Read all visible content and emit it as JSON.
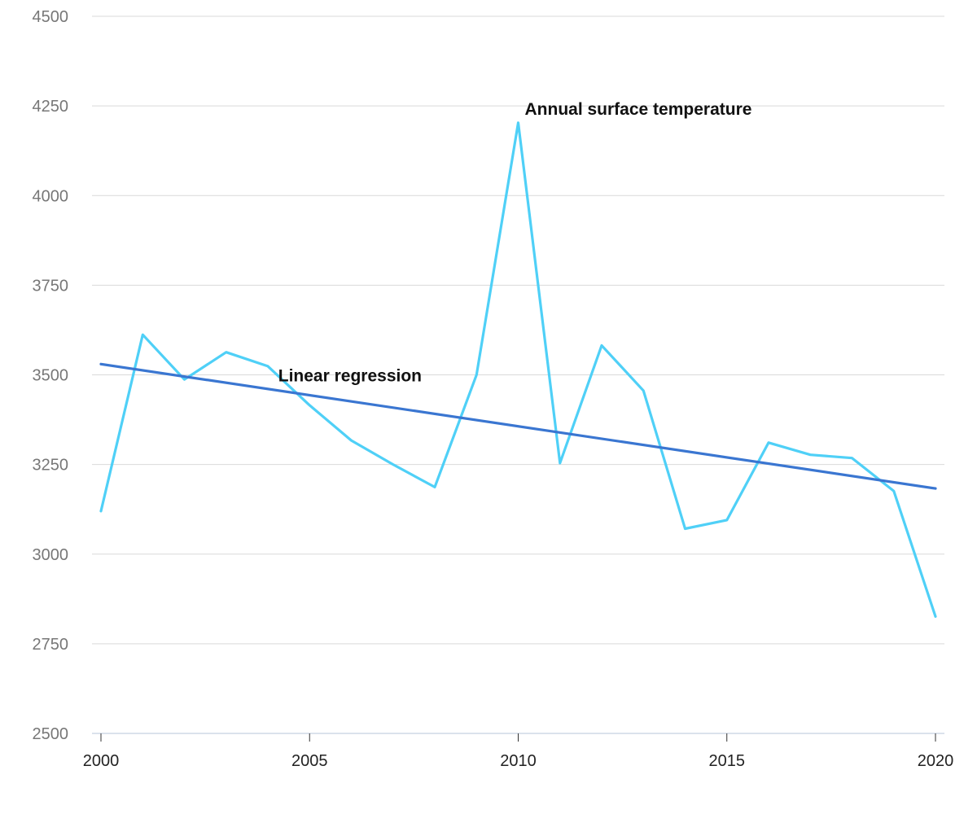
{
  "chart_data": {
    "type": "line",
    "x": [
      2000,
      2001,
      2002,
      2003,
      2004,
      2005,
      2006,
      2007,
      2008,
      2009,
      2010,
      2011,
      2012,
      2013,
      2014,
      2015,
      2016,
      2017,
      2018,
      2019,
      2020
    ],
    "series": [
      {
        "name": "Annual surface temperature",
        "color": "#4fd0f7",
        "values": [
          3120,
          3612,
          3487,
          3563,
          3524,
          3415,
          3317,
          3250,
          3187,
          3500,
          4203,
          3254,
          3582,
          3456,
          3071,
          3095,
          3311,
          3277,
          3268,
          3176,
          2826
        ]
      },
      {
        "name": "Linear regression",
        "color": "#3a76d1",
        "values": [
          3530,
          3183
        ],
        "x": [
          2000,
          2020
        ]
      }
    ],
    "annotations": [
      {
        "text": "Annual surface temperature",
        "series": 0,
        "at_x": 2010
      },
      {
        "text": "Linear regression",
        "series": 1,
        "at_x": 2004.6
      }
    ],
    "ylim": [
      2500,
      4500
    ],
    "yticks": [
      2500,
      2750,
      3000,
      3250,
      3500,
      3750,
      4000,
      4250,
      4500
    ],
    "xlim": [
      2000,
      2020
    ],
    "xticks": [
      2000,
      2005,
      2010,
      2015,
      2020
    ],
    "grid": true,
    "title": "",
    "xlabel": "",
    "ylabel": ""
  }
}
